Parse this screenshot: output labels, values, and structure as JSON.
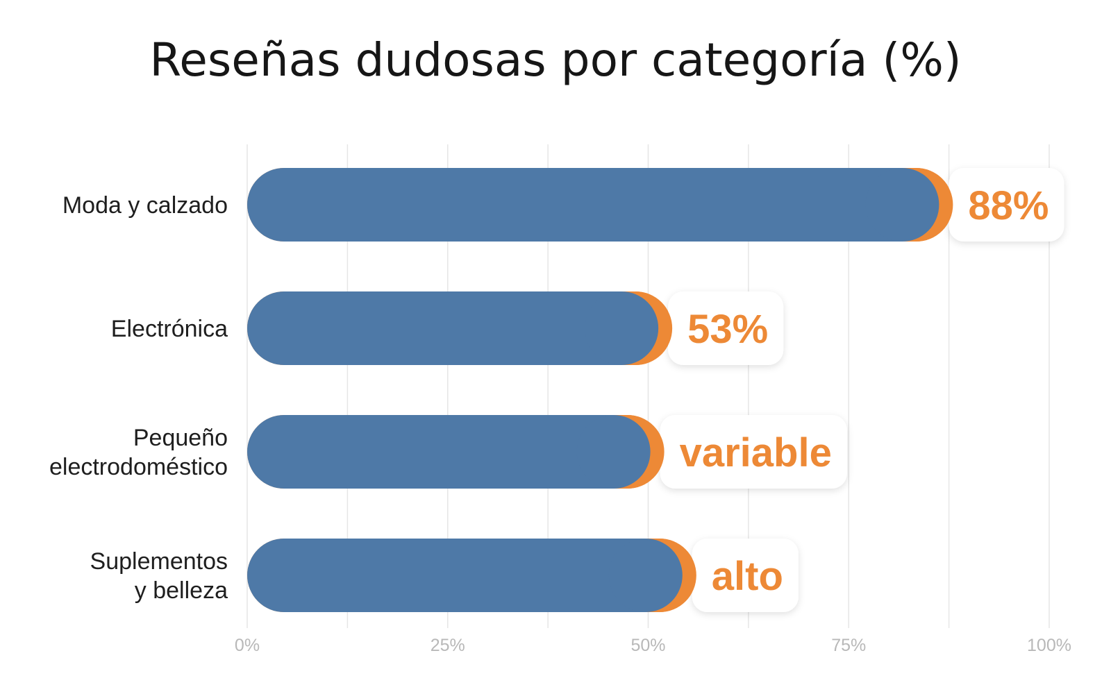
{
  "colors": {
    "bar": "#4e79a7",
    "accent": "#ed8936",
    "grid": "#e6e6e6",
    "label_box": "#ffffff"
  },
  "chart_data": {
    "type": "bar",
    "orientation": "horizontal",
    "title": "Reseñas dudosas por categoría (%)",
    "categories": [
      "Moda y calzado",
      "Electrónica",
      "Pequeño electrodoméstico",
      "Suplementos y belleza"
    ],
    "category_lines": [
      [
        "Moda y calzado"
      ],
      [
        "Electrónica"
      ],
      [
        "Pequeño",
        "electrodoméstico"
      ],
      [
        "Suplementos",
        "y belleza"
      ]
    ],
    "values": [
      88,
      53,
      52,
      56
    ],
    "data_labels": [
      "88%",
      "53%",
      "variable",
      "alto"
    ],
    "xlim": [
      0,
      100
    ],
    "x_ticks": [
      0,
      25,
      50,
      75,
      100
    ],
    "x_tick_labels": [
      "0%",
      "25%",
      "50%",
      "75%",
      "100%"
    ],
    "grid": true,
    "legend": "none"
  }
}
